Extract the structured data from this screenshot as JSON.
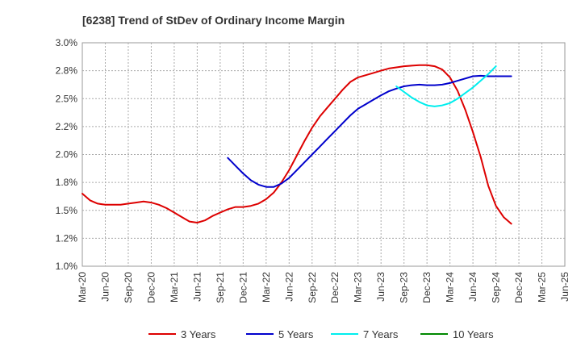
{
  "chart_data": {
    "type": "line",
    "title": "[6238]  Trend of StDev of Ordinary Income Margin",
    "ylim": [
      1.0,
      3.0
    ],
    "y_ticks": [
      "1.0%",
      "1.2%",
      "1.5%",
      "1.8%",
      "2.0%",
      "2.2%",
      "2.5%",
      "2.8%",
      "3.0%"
    ],
    "x_ticks": [
      "Mar-20",
      "Jun-20",
      "Sep-20",
      "Dec-20",
      "Mar-21",
      "Jun-21",
      "Sep-21",
      "Dec-21",
      "Mar-22",
      "Jun-22",
      "Sep-22",
      "Dec-22",
      "Mar-23",
      "Jun-23",
      "Sep-23",
      "Dec-23",
      "Mar-24",
      "Jun-24",
      "Sep-24",
      "Dec-24",
      "Mar-25",
      "Jun-25"
    ],
    "grid": true,
    "legend_position": "bottom",
    "series": [
      {
        "name": "3 Years",
        "color": "#dd0000",
        "start_index": 0,
        "values": [
          1.65,
          1.59,
          1.56,
          1.55,
          1.55,
          1.55,
          1.56,
          1.57,
          1.58,
          1.57,
          1.55,
          1.52,
          1.48,
          1.44,
          1.4,
          1.39,
          1.41,
          1.45,
          1.48,
          1.51,
          1.53,
          1.53,
          1.54,
          1.56,
          1.6,
          1.66,
          1.75,
          1.86,
          1.99,
          2.12,
          2.24,
          2.34,
          2.42,
          2.5,
          2.58,
          2.65,
          2.69,
          2.71,
          2.73,
          2.75,
          2.77,
          2.78,
          2.79,
          2.795,
          2.8,
          2.8,
          2.79,
          2.76,
          2.69,
          2.57,
          2.4,
          2.2,
          1.98,
          1.72,
          1.54,
          1.44,
          1.38
        ]
      },
      {
        "name": "5 Years",
        "color": "#0000cc",
        "start_index": 19,
        "values": [
          1.97,
          1.9,
          1.83,
          1.77,
          1.73,
          1.71,
          1.71,
          1.74,
          1.79,
          1.86,
          1.93,
          2.0,
          2.07,
          2.14,
          2.21,
          2.28,
          2.35,
          2.41,
          2.45,
          2.49,
          2.53,
          2.565,
          2.59,
          2.61,
          2.62,
          2.625,
          2.62,
          2.62,
          2.625,
          2.64,
          2.66,
          2.68,
          2.7,
          2.705,
          2.7,
          2.7,
          2.7,
          2.7
        ]
      },
      {
        "name": "7 Years",
        "color": "#00eeee",
        "start_index": 41,
        "values": [
          2.61,
          2.56,
          2.51,
          2.47,
          2.44,
          2.43,
          2.44,
          2.46,
          2.5,
          2.55,
          2.6,
          2.66,
          2.72,
          2.79
        ]
      },
      {
        "name": "10 Years",
        "color": "#008800",
        "start_index": 0,
        "values": []
      }
    ]
  }
}
